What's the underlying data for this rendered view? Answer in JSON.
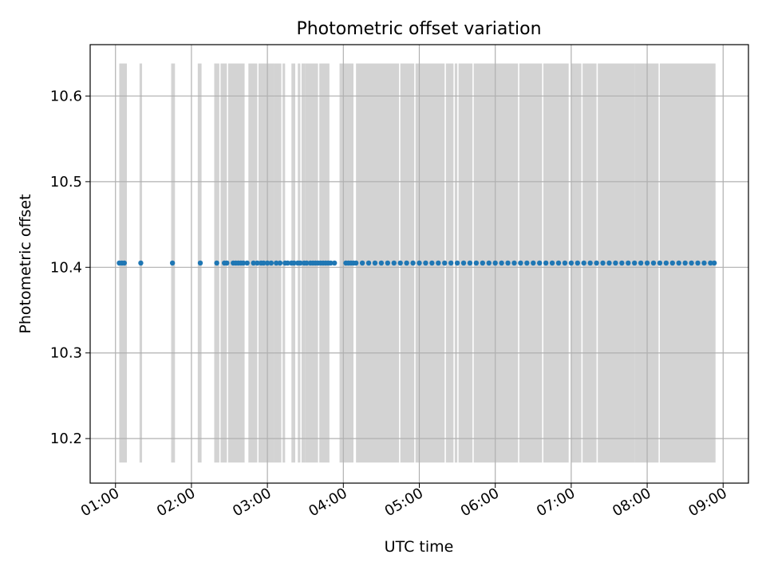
{
  "chart_data": {
    "type": "scatter",
    "title": "Photometric offset variation",
    "xlabel": "UTC time",
    "ylabel": "Photometric offset",
    "x_axis_type": "time",
    "xlim": [
      "00:40",
      "09:20"
    ],
    "ylim": [
      10.148,
      10.66
    ],
    "grid": true,
    "x_ticks": [
      "01:00",
      "02:00",
      "03:00",
      "04:00",
      "05:00",
      "06:00",
      "07:00",
      "08:00",
      "09:00"
    ],
    "y_ticks": [
      "10.2",
      "10.3",
      "10.4",
      "10.5",
      "10.6"
    ],
    "marker_color": "#1f77b4",
    "band_color": "#d3d3d3",
    "band_y_range": [
      10.172,
      10.638
    ],
    "value": 10.405,
    "x": [
      "01:03",
      "01:05",
      "01:07",
      "01:20",
      "01:45",
      "02:07",
      "02:20",
      "02:26",
      "02:28",
      "02:33",
      "02:35",
      "02:37",
      "02:39",
      "02:41",
      "02:44",
      "02:49",
      "02:52",
      "02:55",
      "02:57",
      "03:00",
      "03:03",
      "03:07",
      "03:10",
      "03:14",
      "03:16",
      "03:19",
      "03:21",
      "03:24",
      "03:26",
      "03:29",
      "03:31",
      "03:34",
      "03:36",
      "03:38",
      "03:40",
      "03:42",
      "03:44",
      "03:46",
      "03:48",
      "03:50",
      "03:53",
      "04:02",
      "04:04",
      "04:06",
      "04:08",
      "04:10",
      "04:15",
      "04:20",
      "04:25",
      "04:30",
      "04:35",
      "04:40",
      "04:45",
      "04:50",
      "04:55",
      "05:00",
      "05:05",
      "05:10",
      "05:15",
      "05:20",
      "05:25",
      "05:30",
      "05:35",
      "05:40",
      "05:45",
      "05:50",
      "05:55",
      "06:00",
      "06:05",
      "06:10",
      "06:15",
      "06:20",
      "06:25",
      "06:30",
      "06:35",
      "06:40",
      "06:45",
      "06:50",
      "06:55",
      "07:00",
      "07:05",
      "07:10",
      "07:15",
      "07:20",
      "07:25",
      "07:30",
      "07:35",
      "07:40",
      "07:45",
      "07:50",
      "07:55",
      "08:00",
      "08:05",
      "08:10",
      "08:15",
      "08:20",
      "08:25",
      "08:30",
      "08:35",
      "08:40",
      "08:45",
      "08:50",
      "08:53"
    ],
    "bands": [
      [
        "01:03",
        "01:09"
      ],
      [
        "01:19",
        "01:21"
      ],
      [
        "01:44",
        "01:47"
      ],
      [
        "02:05",
        "02:08"
      ],
      [
        "02:18",
        "02:22"
      ],
      [
        "02:23",
        "02:28"
      ],
      [
        "02:29",
        "02:42"
      ],
      [
        "02:45",
        "02:52"
      ],
      [
        "02:53",
        "03:05"
      ],
      [
        "03:05",
        "03:11"
      ],
      [
        "03:12",
        "03:14"
      ],
      [
        "03:19",
        "03:22"
      ],
      [
        "03:24",
        "03:26"
      ],
      [
        "03:27",
        "03:30"
      ],
      [
        "03:30",
        "03:40"
      ],
      [
        "03:41",
        "03:49"
      ],
      [
        "03:57",
        "04:08"
      ],
      [
        "04:10",
        "04:44"
      ],
      [
        "04:45",
        "04:56"
      ],
      [
        "04:57",
        "05:20"
      ],
      [
        "05:21",
        "05:27"
      ],
      [
        "05:28",
        "05:30"
      ],
      [
        "05:31",
        "05:42"
      ],
      [
        "05:43",
        "06:18"
      ],
      [
        "06:19",
        "06:37"
      ],
      [
        "06:38",
        "06:58"
      ],
      [
        "07:00",
        "07:08"
      ],
      [
        "07:09",
        "07:20"
      ],
      [
        "07:21",
        "07:50"
      ],
      [
        "07:50",
        "08:09"
      ],
      [
        "08:10",
        "08:54"
      ]
    ]
  }
}
